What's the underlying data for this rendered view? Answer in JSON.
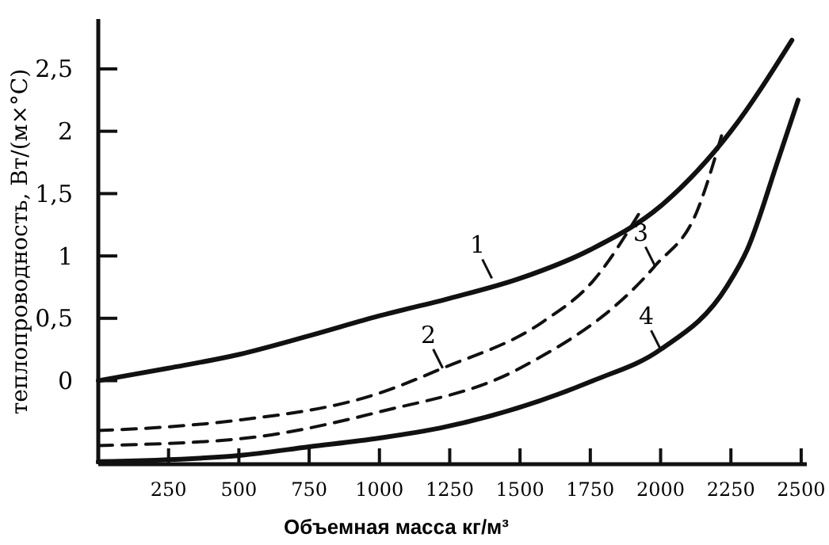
{
  "chart_data": {
    "type": "line",
    "xlabel": "Объемная масса кг/м³",
    "ylabel": "теплопроводность, Вт/(м×°С)",
    "xlim": [
      0,
      2520
    ],
    "ylim": [
      -0.67,
      2.9
    ],
    "xticks": [
      250,
      500,
      750,
      1000,
      1250,
      1500,
      1750,
      2000,
      2250,
      2500
    ],
    "yticks": [
      {
        "value": 0,
        "label": "0"
      },
      {
        "value": 0.5,
        "label": "0,5"
      },
      {
        "value": 1,
        "label": "1"
      },
      {
        "value": 1.5,
        "label": "1,5"
      },
      {
        "value": 2,
        "label": "2"
      },
      {
        "value": 2.5,
        "label": "2,5"
      }
    ],
    "grid": false,
    "marker": "none",
    "series": [
      {
        "color": "#111111",
        "line_style": "solid",
        "x": [
          0,
          250,
          500,
          750,
          1000,
          1250,
          1500,
          1750,
          2000,
          2250,
          2467
        ],
        "values": [
          0,
          0.1,
          0.21,
          0.36,
          0.52,
          0.66,
          0.82,
          1.05,
          1.4,
          2.0,
          2.73
        ]
      },
      {
        "color": "#111111",
        "line_style": "dashed",
        "x": [
          0,
          250,
          487,
          1000,
          1225,
          1580,
          1760,
          1926
        ],
        "values": [
          -0.4,
          -0.37,
          -0.32,
          -0.1,
          0.1,
          0.47,
          0.8,
          1.35
        ]
      },
      {
        "color": "#111111",
        "line_style": "dashed",
        "x": [
          0,
          487,
          1000,
          1500,
          1980,
          2128,
          2220
        ],
        "values": [
          -0.52,
          -0.47,
          -0.25,
          0.1,
          0.92,
          1.35,
          1.99
        ]
      },
      {
        "color": "#111111",
        "line_style": "solid",
        "x": [
          0,
          500,
          750,
          1000,
          1215,
          1760,
          2000,
          2237,
          2308,
          2418,
          2489
        ],
        "values": [
          -0.65,
          -0.6,
          -0.53,
          -0.46,
          -0.38,
          0,
          0.25,
          0.76,
          1.05,
          1.77,
          2.25
        ]
      }
    ],
    "annotations": [
      {
        "text": "1",
        "x": 1400,
        "y": 0.82
      },
      {
        "text": "2",
        "x": 1225,
        "y": 0.1
      },
      {
        "text": "3",
        "x": 1980,
        "y": 0.92
      },
      {
        "text": "4",
        "x": 2000,
        "y": 0.25
      }
    ]
  }
}
